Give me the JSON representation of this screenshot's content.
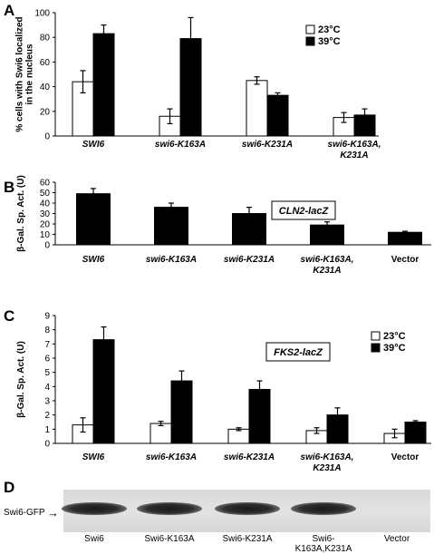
{
  "chart_data": [
    {
      "panel": "A",
      "type": "bar",
      "ylabel": "% cells with Swi6 localized in the nucleus",
      "ylabel_lines": [
        "% cells with Swi6 localized",
        "in the nucleus"
      ],
      "ylim": [
        0,
        100
      ],
      "yticks": [
        0,
        20,
        40,
        60,
        80,
        100
      ],
      "ytick_labels": [
        "0",
        "20",
        "40",
        "60",
        "80",
        "100"
      ],
      "categories": [
        "SWI6",
        "swi6-K163A",
        "swi6-K231A",
        "swi6-K163A,"
      ],
      "category_second_lines": [
        "",
        "",
        "",
        "K231A"
      ],
      "category_italic": true,
      "legend": {
        "placement": "top-right",
        "entries": [
          "23°C",
          "39°C"
        ]
      },
      "series": [
        {
          "name": "23°C",
          "color": "#ffffff",
          "values": [
            44,
            16,
            45,
            15
          ],
          "errors": [
            9,
            6,
            3,
            4
          ]
        },
        {
          "name": "39°C",
          "color": "#000000",
          "values": [
            83,
            79,
            33,
            17
          ],
          "errors": [
            7,
            17,
            2,
            5
          ]
        }
      ]
    },
    {
      "panel": "B",
      "type": "bar",
      "ylabel": "β-Gal. Sp. Act. (U)",
      "ylim": [
        0,
        60
      ],
      "yticks": [
        0,
        10,
        20,
        30,
        40,
        50,
        60
      ],
      "ytick_labels": [
        "0",
        "10",
        "20",
        "30",
        "40",
        "50",
        "60"
      ],
      "categories": [
        "SWI6",
        "swi6-K163A",
        "swi6-K231A",
        "swi6-K163A,",
        "Vector"
      ],
      "category_second_lines": [
        "",
        "",
        "",
        "K231A",
        ""
      ],
      "category_italic": [
        true,
        true,
        true,
        true,
        false
      ],
      "annotation": "CLN2-lacZ",
      "series": [
        {
          "color": "#000000",
          "values": [
            49,
            36,
            30,
            19,
            12
          ],
          "errors": [
            5,
            4,
            6,
            3,
            1
          ]
        }
      ]
    },
    {
      "panel": "C",
      "type": "bar",
      "ylabel": "β-Gal. Sp. Act. (U)",
      "ylim": [
        0,
        9
      ],
      "yticks": [
        0,
        1,
        2,
        3,
        4,
        5,
        6,
        7,
        8,
        9
      ],
      "ytick_labels": [
        "0",
        "1",
        "2",
        "3",
        "4",
        "5",
        "6",
        "7",
        "8",
        "9"
      ],
      "categories": [
        "SWI6",
        "swi6-K163A",
        "swi6-K231A",
        "swi6-K163A,",
        "Vector"
      ],
      "category_second_lines": [
        "",
        "",
        "",
        "K231A",
        ""
      ],
      "category_italic": [
        true,
        true,
        true,
        true,
        false
      ],
      "annotation": "FKS2-lacZ",
      "legend": {
        "placement": "top-right",
        "entries": [
          "23°C",
          "39°C"
        ]
      },
      "series": [
        {
          "name": "23°C",
          "color": "#ffffff",
          "values": [
            1.3,
            1.4,
            1.0,
            0.9,
            0.7
          ],
          "errors": [
            0.5,
            0.15,
            0.1,
            0.2,
            0.3
          ]
        },
        {
          "name": "39°C",
          "color": "#000000",
          "values": [
            7.3,
            4.4,
            3.8,
            2.0,
            1.5
          ],
          "errors": [
            0.9,
            0.7,
            0.6,
            0.5,
            0.1
          ]
        }
      ]
    }
  ],
  "panels": {
    "A": "A",
    "B": "B",
    "C": "C",
    "D": "D"
  },
  "blot": {
    "row_label": "Swi6-GFP",
    "lanes": [
      "Swi6",
      "Swi6-K163A",
      "Swi6-K231A",
      "Swi6-",
      "Vector"
    ],
    "lane_second_lines": [
      "",
      "",
      "",
      "K163A,K231A",
      ""
    ],
    "band_present": [
      true,
      true,
      true,
      true,
      false
    ]
  }
}
